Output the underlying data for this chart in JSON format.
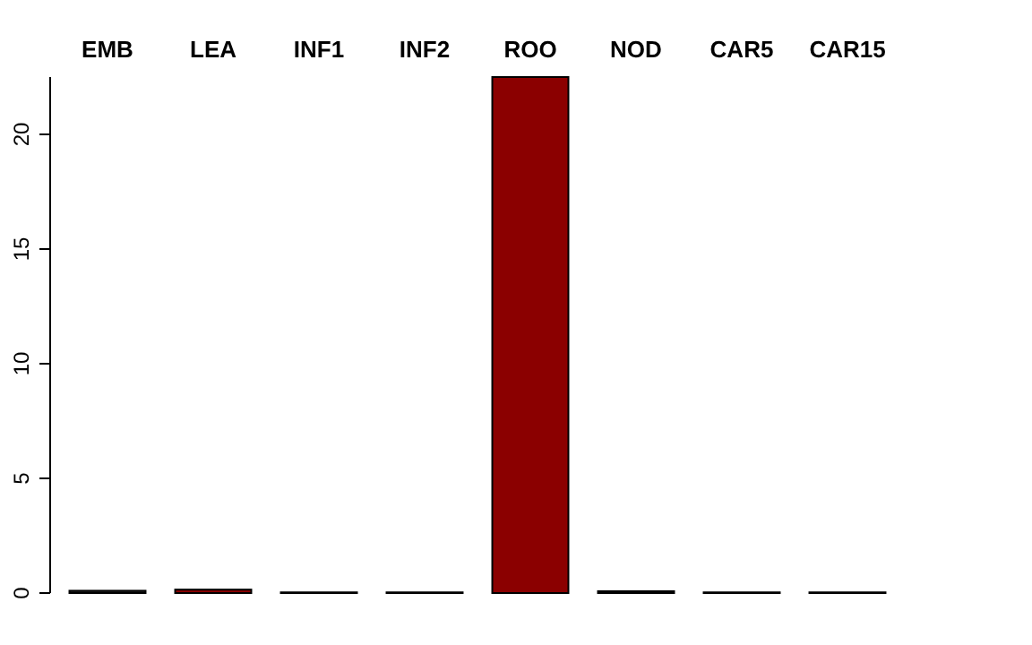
{
  "chart_data": {
    "type": "bar",
    "categories": [
      "EMB",
      "LEA",
      "INF1",
      "INF2",
      "ROO",
      "NOD",
      "CAR5",
      "CAR15"
    ],
    "values": [
      0.1,
      0.15,
      0.03,
      0.03,
      22.5,
      0.08,
      0.03,
      0.03
    ],
    "colors": [
      "#222222",
      "#8b0000",
      "#556655",
      "#555566",
      "#8b0000",
      "#442244",
      "#444444",
      "#444444"
    ],
    "ylim": [
      0,
      22.5
    ],
    "yticks": [
      0,
      5,
      10,
      15,
      20
    ]
  }
}
